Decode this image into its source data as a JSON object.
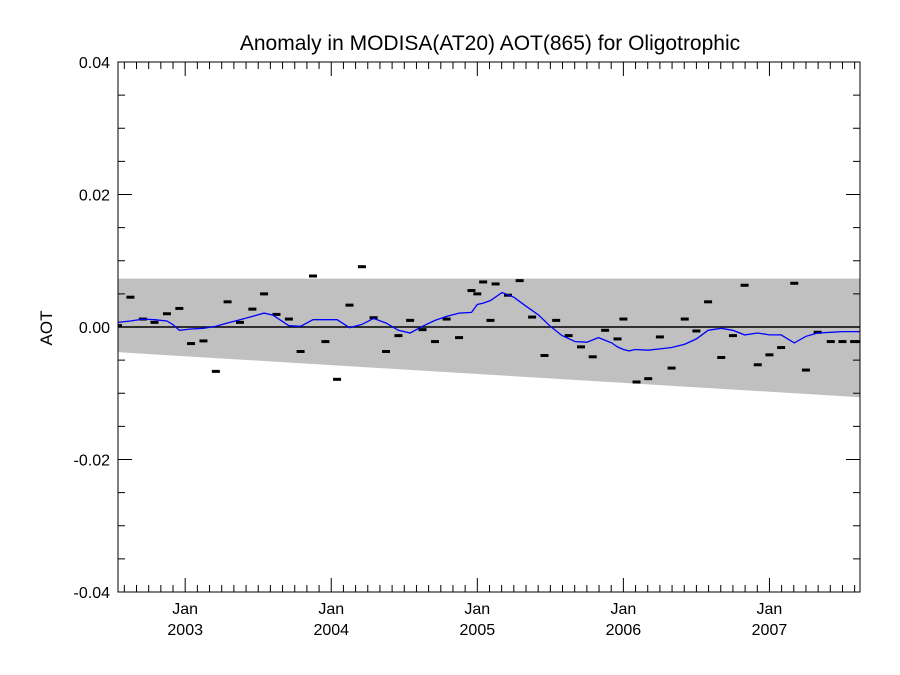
{
  "chart_data": {
    "type": "line",
    "title": "Anomaly in MODISA(AT20) AOT(865) for Oligotrophic",
    "xlabel": "",
    "ylabel": "AOT",
    "x_range": [
      2002.54,
      2007.62
    ],
    "ylim": [
      -0.04,
      0.04
    ],
    "y_ticks": [
      {
        "value": 0.04,
        "label": "0.04"
      },
      {
        "value": 0.02,
        "label": "0.02"
      },
      {
        "value": 0.0,
        "label": "0.00"
      },
      {
        "value": -0.02,
        "label": "-0.02"
      },
      {
        "value": -0.04,
        "label": "-0.04"
      }
    ],
    "x_ticks": [
      {
        "value": 2003.0,
        "month": "Jan",
        "year": "2003"
      },
      {
        "value": 2004.0,
        "month": "Jan",
        "year": "2004"
      },
      {
        "value": 2005.0,
        "month": "Jan",
        "year": "2005"
      },
      {
        "value": 2006.0,
        "month": "Jan",
        "year": "2006"
      },
      {
        "value": 2007.0,
        "month": "Jan",
        "year": "2007"
      }
    ],
    "band": {
      "color": "#c0c0c0",
      "start": {
        "x": 2002.54,
        "upper": 0.0073,
        "lower": -0.0038
      },
      "end": {
        "x": 2007.62,
        "upper": 0.0073,
        "lower": -0.0106
      }
    },
    "zero_line": {
      "value": 0.0,
      "color": "#000000"
    },
    "series": [
      {
        "kind": "points",
        "color": "#000000",
        "x": [
          2002.54,
          2002.625,
          2002.71,
          2002.79,
          2002.875,
          2002.96,
          2003.04,
          2003.125,
          2003.21,
          2003.29,
          2003.375,
          2003.46,
          2003.54,
          2003.625,
          2003.71,
          2003.79,
          2003.875,
          2003.96,
          2004.04,
          2004.125,
          2004.21,
          2004.29,
          2004.375,
          2004.46,
          2004.54,
          2004.625,
          2004.71,
          2004.79,
          2004.875,
          2004.96,
          2005.0,
          2005.04,
          2005.09,
          2005.125,
          2005.21,
          2005.29,
          2005.375,
          2005.46,
          2005.54,
          2005.625,
          2005.71,
          2005.79,
          2005.875,
          2005.96,
          2006.0,
          2006.09,
          2006.17,
          2006.25,
          2006.33,
          2006.42,
          2006.5,
          2006.58,
          2006.67,
          2006.75,
          2006.83,
          2006.92,
          2007.0,
          2007.08,
          2007.17,
          2007.25,
          2007.33,
          2007.42,
          2007.5,
          2007.58,
          2007.62
        ],
        "y": [
          0.0002,
          0.0045,
          0.0012,
          0.0007,
          0.002,
          0.0028,
          -0.0025,
          -0.0021,
          -0.0067,
          0.0038,
          0.0007,
          0.0027,
          0.005,
          0.0019,
          0.0012,
          -0.0037,
          0.0077,
          -0.0022,
          -0.0079,
          0.0033,
          0.0091,
          0.0014,
          -0.0037,
          -0.0013,
          0.001,
          -0.0004,
          -0.0022,
          0.0012,
          -0.0016,
          0.0055,
          0.005,
          0.0068,
          0.001,
          0.0065,
          0.0048,
          0.007,
          0.0015,
          -0.0043,
          0.001,
          -0.0013,
          -0.003,
          -0.0045,
          -0.0005,
          -0.0018,
          0.0012,
          -0.0083,
          -0.0078,
          -0.0015,
          -0.0062,
          0.0012,
          -0.0006,
          0.0038,
          -0.0046,
          -0.0013,
          0.0063,
          -0.0057,
          -0.0042,
          -0.0031,
          0.0066,
          -0.0065,
          -0.0008,
          -0.0022,
          -0.0022,
          -0.0022,
          -0.0022
        ]
      },
      {
        "kind": "line",
        "color": "#0000ff",
        "x": [
          2002.54,
          2002.625,
          2002.71,
          2002.79,
          2002.875,
          2002.92,
          2002.96,
          2003.04,
          2003.125,
          2003.21,
          2003.29,
          2003.375,
          2003.46,
          2003.54,
          2003.6,
          2003.71,
          2003.79,
          2003.875,
          2003.96,
          2004.04,
          2004.125,
          2004.21,
          2004.29,
          2004.375,
          2004.46,
          2004.54,
          2004.625,
          2004.71,
          2004.79,
          2004.875,
          2004.96,
          2005.0,
          2005.04,
          2005.09,
          2005.17,
          2005.25,
          2005.33,
          2005.42,
          2005.5,
          2005.58,
          2005.67,
          2005.75,
          2005.83,
          2005.92,
          2005.96,
          2006.0,
          2006.04,
          2006.08,
          2006.17,
          2006.25,
          2006.33,
          2006.42,
          2006.5,
          2006.58,
          2006.67,
          2006.75,
          2006.83,
          2006.92,
          2007.0,
          2007.08,
          2007.17,
          2007.25,
          2007.33,
          2007.42,
          2007.5,
          2007.58,
          2007.62
        ],
        "y": [
          0.0007,
          0.0009,
          0.0012,
          0.0011,
          0.0009,
          0.0003,
          -0.0005,
          -0.0003,
          -0.0002,
          0.0001,
          0.0006,
          0.0011,
          0.0016,
          0.0021,
          0.0018,
          0.0002,
          0.0001,
          0.0011,
          0.0011,
          0.0011,
          -0.0001,
          0.0004,
          0.0013,
          0.0006,
          -0.0005,
          -0.0009,
          0.0001,
          0.001,
          0.0016,
          0.0021,
          0.0022,
          0.0034,
          0.0036,
          0.004,
          0.0052,
          0.0045,
          0.0032,
          0.0018,
          0.0001,
          -0.0013,
          -0.0022,
          -0.0023,
          -0.0016,
          -0.0024,
          -0.003,
          -0.0034,
          -0.0036,
          -0.0034,
          -0.0035,
          -0.0033,
          -0.0031,
          -0.0026,
          -0.0018,
          -0.0005,
          -0.0002,
          -0.0005,
          -0.0012,
          -0.0009,
          -0.0012,
          -0.0012,
          -0.0024,
          -0.0014,
          -0.0009,
          -0.0008,
          -0.0007,
          -0.0007,
          -0.0007
        ]
      }
    ]
  }
}
